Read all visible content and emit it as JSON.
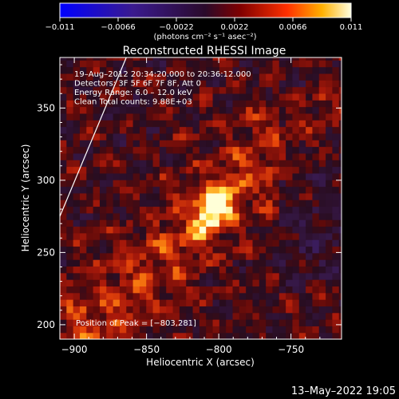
{
  "chart_data": {
    "type": "heatmap",
    "title": "Reconstructed RHESSI Image",
    "xlabel": "Heliocentric X (arcsec)",
    "ylabel": "Heliocentric Y (arcsec)",
    "xlim": [
      -910,
      -715
    ],
    "ylim": [
      190,
      385
    ],
    "x_ticks": [
      -900,
      -850,
      -800,
      -750
    ],
    "y_ticks": [
      200,
      250,
      300,
      350
    ],
    "colorbar": {
      "min": -0.011,
      "max": 0.011,
      "ticks": [
        -0.011,
        -0.0066,
        -0.0022,
        0.0022,
        0.0066,
        0.011
      ],
      "tick_labels": [
        "−0.011",
        "−0.0066",
        "−0.0022",
        "0.0022",
        "0.0066",
        "0.011"
      ],
      "unit_label": "(photons cm⁻² s⁻¹ asec⁻²)"
    },
    "peak": {
      "x": -803,
      "y": 281,
      "value": 0.011
    },
    "limb_line": [
      {
        "x": -910,
        "y": 275
      },
      {
        "x": -864,
        "y": 385
      }
    ],
    "info_lines": [
      "19–Aug–2012 20:34:20.000 to 20:36:12.000",
      "Detectors: 3F 5F 6F 7F 8F, Att 0",
      "Energy Range: 6.0 – 12.0 keV",
      "Clean    Total counts: 9.88E+03"
    ],
    "peak_label": "Position of Peak = [−803,281]"
  },
  "footer": {
    "timestamp": "13–May–2022 19:05"
  }
}
